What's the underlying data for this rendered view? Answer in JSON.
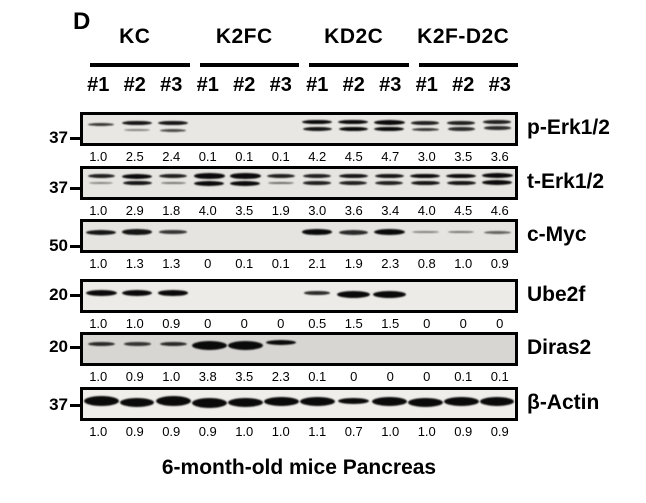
{
  "panel_label": "D",
  "caption": "6-month-old mice Pancreas",
  "colors": {
    "band": "#0a0a0a",
    "border": "#000000",
    "text": "#000000",
    "background": "#ffffff"
  },
  "groups": [
    {
      "label": "KC"
    },
    {
      "label": "K2FC"
    },
    {
      "label": "KD2C"
    },
    {
      "label": "K2F-D2C"
    }
  ],
  "lane_labels": [
    "#1",
    "#2",
    "#3",
    "#1",
    "#2",
    "#3",
    "#1",
    "#2",
    "#3",
    "#1",
    "#2",
    "#3"
  ],
  "blots": [
    {
      "label": "p-Erk1/2",
      "mw_marker": "37",
      "bg": "#e9e7e3",
      "values": [
        "1.0",
        "2.5",
        "2.4",
        "0.1",
        "0.1",
        "0.1",
        "4.2",
        "4.5",
        "4.7",
        "3.0",
        "3.5",
        "3.6"
      ],
      "bands": [
        [
          [
            -5,
            3,
            26,
            0.8
          ]
        ],
        [
          [
            -6,
            4.5,
            30,
            0.95
          ],
          [
            1,
            2.5,
            26,
            0.45
          ]
        ],
        [
          [
            -6,
            4.5,
            30,
            0.95
          ],
          [
            1,
            3,
            26,
            0.7
          ]
        ],
        [],
        [],
        [],
        [
          [
            -7,
            4.5,
            30,
            1
          ],
          [
            0,
            4,
            29,
            0.95
          ]
        ],
        [
          [
            -7,
            4.5,
            30,
            1
          ],
          [
            0,
            4.5,
            29,
            1
          ]
        ],
        [
          [
            -7,
            5,
            31,
            1
          ],
          [
            0,
            4.5,
            30,
            1
          ]
        ],
        [
          [
            -6,
            3.5,
            28,
            0.9
          ],
          [
            0,
            3,
            27,
            0.8
          ]
        ],
        [
          [
            -6,
            3.5,
            28,
            0.9
          ],
          [
            0,
            3.5,
            27,
            0.85
          ]
        ],
        [
          [
            -7,
            3.5,
            28,
            0.9
          ],
          [
            -1,
            3.5,
            27,
            0.85
          ]
        ]
      ]
    },
    {
      "label": "t-Erk1/2",
      "mw_marker": "37",
      "bg": "#e7e5e1",
      "values": [
        "1.0",
        "2.9",
        "1.8",
        "4.0",
        "3.5",
        "1.9",
        "3.0",
        "3.6",
        "3.4",
        "4.0",
        "4.5",
        "4.6"
      ],
      "bands": [
        [
          [
            -7,
            4,
            27,
            0.9
          ],
          [
            0,
            2,
            24,
            0.45
          ]
        ],
        [
          [
            -7,
            5,
            30,
            1
          ],
          [
            0,
            4.5,
            29,
            0.95
          ]
        ],
        [
          [
            -7,
            4,
            28,
            0.9
          ],
          [
            0,
            2.5,
            25,
            0.5
          ]
        ],
        [
          [
            -7,
            5.5,
            31,
            1
          ],
          [
            0,
            5,
            30,
            1
          ]
        ],
        [
          [
            -7,
            5.5,
            31,
            1
          ],
          [
            0,
            5,
            30,
            1
          ]
        ],
        [
          [
            -7,
            4,
            28,
            0.9
          ],
          [
            0,
            2.5,
            26,
            0.55
          ]
        ],
        [
          [
            -7,
            4,
            28,
            0.9
          ],
          [
            0,
            3.5,
            28,
            0.9
          ]
        ],
        [
          [
            -7,
            4.5,
            29,
            0.95
          ],
          [
            0,
            4,
            28,
            0.9
          ]
        ],
        [
          [
            -7,
            4.5,
            29,
            0.95
          ],
          [
            0,
            4,
            28,
            0.9
          ]
        ],
        [
          [
            -7,
            4.5,
            30,
            1
          ],
          [
            0,
            4.5,
            29,
            0.95
          ]
        ],
        [
          [
            -7,
            4.5,
            30,
            1
          ],
          [
            0,
            4.5,
            29,
            0.95
          ]
        ],
        [
          [
            -8,
            5,
            31,
            1
          ],
          [
            -1,
            5,
            30,
            1
          ]
        ]
      ]
    },
    {
      "label": "c-Myc",
      "mw_marker": "50",
      "bg": "#e6e4e0",
      "values": [
        "1.0",
        "1.3",
        "1.3",
        "0",
        "0.1",
        "0.1",
        "2.1",
        "1.9",
        "2.3",
        "0.8",
        "1.0",
        "0.9"
      ],
      "bands": [
        [
          [
            -4,
            5,
            30,
            0.95
          ]
        ],
        [
          [
            -4,
            5.5,
            30,
            0.95
          ]
        ],
        [
          [
            -4,
            3.5,
            28,
            0.8
          ]
        ],
        [],
        [],
        [],
        [
          [
            -4,
            5.5,
            30,
            1
          ]
        ],
        [
          [
            -4,
            5,
            29,
            0.85
          ]
        ],
        [
          [
            -4,
            6,
            31,
            1
          ]
        ],
        [
          [
            -4,
            2.5,
            27,
            0.45
          ]
        ],
        [
          [
            -4,
            2.5,
            26,
            0.5
          ]
        ],
        [
          [
            -4,
            3,
            27,
            0.6
          ]
        ]
      ]
    },
    {
      "label": "Ube2f",
      "mw_marker": "20",
      "bg": "#edebe7",
      "values": [
        "1.0",
        "1.0",
        "0.9",
        "0",
        "0",
        "0",
        "0.5",
        "1.5",
        "1.5",
        "0",
        "0",
        "0"
      ],
      "bands": [
        [
          [
            -3,
            6,
            31,
            1
          ]
        ],
        [
          [
            -3,
            6,
            30,
            1
          ]
        ],
        [
          [
            -3,
            5.5,
            30,
            1
          ]
        ],
        [],
        [],
        [],
        [
          [
            -3,
            3.5,
            26,
            0.85
          ]
        ],
        [
          [
            -2,
            7,
            33,
            1
          ]
        ],
        [
          [
            -2,
            7,
            33,
            1
          ]
        ],
        [],
        [],
        []
      ]
    },
    {
      "label": "Diras2",
      "mw_marker": "20",
      "bg": "#d7d6d2",
      "values": [
        "1.0",
        "0.9",
        "1.0",
        "3.8",
        "3.5",
        "2.3",
        "0.1",
        "0",
        "0",
        "0",
        "0.1",
        "0.1"
      ],
      "bands": [
        [
          [
            -5,
            4,
            27,
            0.85
          ]
        ],
        [
          [
            -5,
            3.5,
            27,
            0.8
          ]
        ],
        [
          [
            -5,
            4,
            27,
            0.85
          ]
        ],
        [
          [
            -4,
            9,
            35,
            1
          ]
        ],
        [
          [
            -4,
            9,
            35,
            1
          ]
        ],
        [
          [
            -7,
            5,
            30,
            1
          ]
        ],
        [],
        [],
        [],
        [],
        [],
        []
      ]
    },
    {
      "label": "β-Actin",
      "mw_marker": "37",
      "bg": "#f0eeea",
      "values": [
        "1.0",
        "0.9",
        "0.9",
        "0.9",
        "1.0",
        "1.0",
        "1.1",
        "0.7",
        "1.0",
        "1.0",
        "0.9",
        "0.9"
      ],
      "bands": [
        [
          [
            -3,
            10,
            35,
            1
          ]
        ],
        [
          [
            -2,
            9,
            34,
            1
          ]
        ],
        [
          [
            -3,
            10,
            35,
            1
          ]
        ],
        [
          [
            -1,
            10,
            35,
            1
          ]
        ],
        [
          [
            -2,
            9,
            35,
            1
          ]
        ],
        [
          [
            -3,
            9,
            35,
            1
          ]
        ],
        [
          [
            -3,
            9,
            35,
            1
          ]
        ],
        [
          [
            -3,
            6,
            31,
            1
          ]
        ],
        [
          [
            -3,
            9,
            35,
            1
          ]
        ],
        [
          [
            -2,
            9,
            35,
            1
          ]
        ],
        [
          [
            -3,
            9,
            35,
            1
          ]
        ],
        [
          [
            -3,
            9,
            34,
            1
          ]
        ]
      ]
    }
  ]
}
